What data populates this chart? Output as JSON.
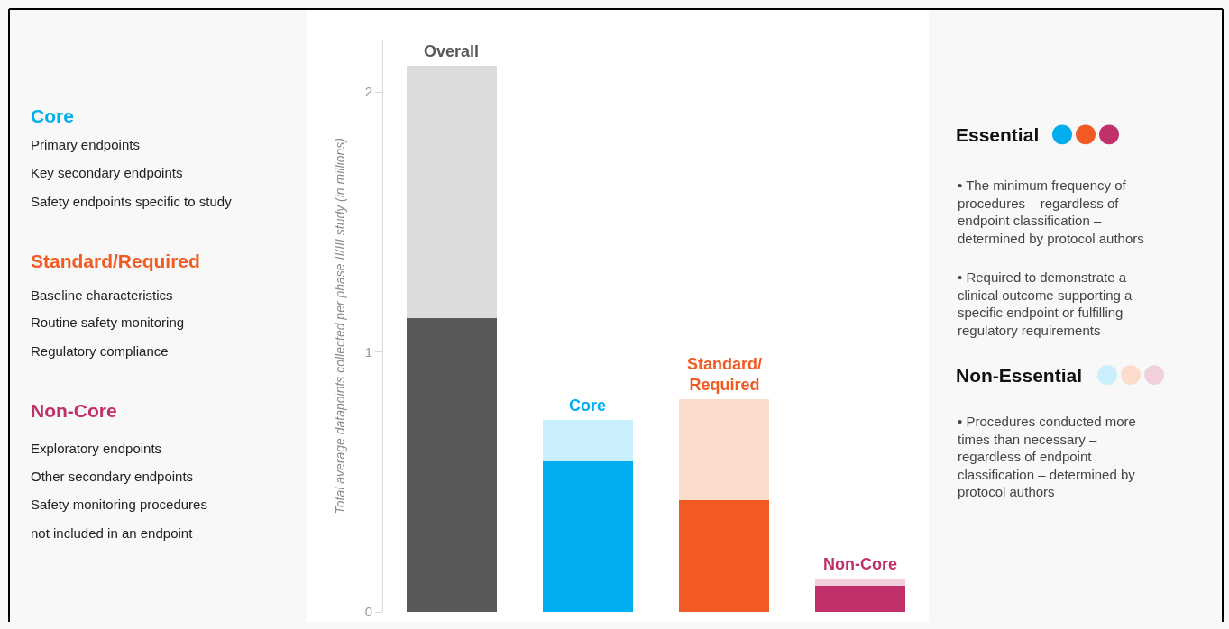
{
  "chart_data": {
    "type": "bar",
    "stacked": true,
    "ylabel": "Total average datapoints collected per phase II/III study (in millions)",
    "categories": [
      null,
      null,
      null,
      null
    ],
    "series": [
      {
        "name": "Essential",
        "colors": [
          "#585858",
          "#00adef",
          "#f15a22",
          "#c0306a"
        ],
        "values": [
          1.13,
          0.58,
          0.43,
          0.1
        ]
      },
      {
        "name": "Non-Essential",
        "colors": [
          "#dcdcdc",
          "#c9eefc",
          "#fcdccd",
          "#f2cfdd"
        ],
        "values": [
          0.97,
          0.16,
          0.39,
          0.03
        ]
      }
    ],
    "ylim": [
      0,
      2.2
    ],
    "yticks": [
      0,
      1,
      2
    ],
    "legend": "right",
    "annotations": [
      {
        "text": "Overall",
        "y": 2.1
      },
      {
        "text": "Core",
        "y": 0.74
      },
      {
        "text": "Standard/Required",
        "y": 0.82
      },
      {
        "text": "Non-Core",
        "y": 0.13
      },
      "Core",
      "Primary endpoints",
      "Key secondary endpoints",
      "Safety endpoints specific to study",
      "Standard/Required",
      "Baseline characteristics",
      "Routine safety monitoring",
      "Regulatory compliance",
      "Non-Core",
      "Exploratory endpoints",
      "Other secondary endpoints",
      "Safety monitoring procedures",
      "not included in an endpoint",
      "• The minimum frequency of\nprocedures – regardless of\nendpoint classification –\ndetermined by protocol authors",
      "• Required to demonstrate a\nclinical outcome supporting a\nspecific endpoint or fulfilling\nregulatory requirements",
      "• Procedures conducted more\ntimes than necessary –\nregardless of endpoint\nclassification – determined by\nprotocol authors"
    ]
  }
}
